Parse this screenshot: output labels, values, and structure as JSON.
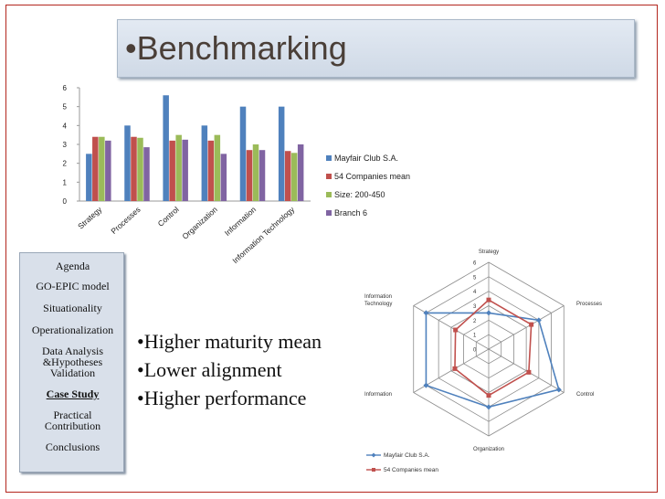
{
  "slide": {
    "title": "•Benchmarking",
    "agenda": [
      {
        "label": "Agenda",
        "active": false
      },
      {
        "label": "GO-EPIC model",
        "active": false
      },
      {
        "label": "Situationality",
        "active": false
      },
      {
        "label": "Operationalization",
        "active": false
      },
      {
        "label": "Data Analysis &Hypotheses Validation",
        "active": false
      },
      {
        "label": "Case Study",
        "active": true
      },
      {
        "label": "Practical Contribution",
        "active": false
      },
      {
        "label": "Conclusions",
        "active": false
      }
    ],
    "bullets": [
      "•Higher maturity mean",
      "•Lower alignment",
      "•Higher performance"
    ]
  },
  "colors": {
    "mayfair": "#4f81bd",
    "companies": "#c0504d",
    "size": "#9bbb59",
    "branch": "#8064a2",
    "radar_grid": "#8c8c8c"
  },
  "chart_data": [
    {
      "type": "bar",
      "categories": [
        "Strategy",
        "Processes",
        "Control",
        "Organization",
        "Information",
        "Information Technology"
      ],
      "ylim": [
        0,
        6
      ],
      "yticks": [
        0,
        1,
        2,
        3,
        4,
        5,
        6
      ],
      "grid": false,
      "legend_position": "right",
      "series": [
        {
          "name": "Mayfair Club S.A.",
          "values": [
            2.5,
            4.0,
            5.6,
            4.0,
            5.0,
            5.0
          ]
        },
        {
          "name": "54 Companies mean",
          "values": [
            3.4,
            3.4,
            3.2,
            3.2,
            2.7,
            2.65
          ]
        },
        {
          "name": "Size: 200-450",
          "values": [
            3.4,
            3.35,
            3.5,
            3.5,
            3.0,
            2.55
          ]
        },
        {
          "name": "Branch 6",
          "values": [
            3.2,
            2.85,
            3.25,
            2.5,
            2.7,
            3.0
          ]
        }
      ]
    },
    {
      "type": "radar",
      "title": "Strategy",
      "axes": [
        "Strategy",
        "Processes",
        "Control",
        "Organization",
        "Information",
        "Information Technology"
      ],
      "range": [
        0,
        6
      ],
      "ticks": [
        0,
        1,
        2,
        3,
        4,
        5,
        6
      ],
      "legend_position": "bottom",
      "series": [
        {
          "name": "Mayfair Club S.A.",
          "values": [
            2.5,
            4.0,
            5.6,
            4.0,
            5.0,
            5.0
          ]
        },
        {
          "name": "54 Companies mean",
          "values": [
            3.4,
            3.4,
            3.2,
            3.2,
            2.7,
            2.65
          ]
        }
      ]
    }
  ]
}
